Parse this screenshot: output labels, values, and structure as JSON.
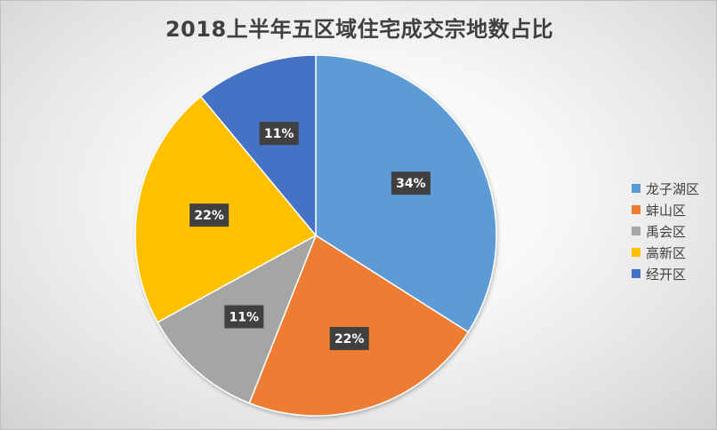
{
  "chart_data": {
    "type": "pie",
    "title": "2018上半年五区域住宅成交宗地数占比",
    "categories": [
      "龙子湖区",
      "蚌山区",
      "禹会区",
      "高新区",
      "经开区"
    ],
    "values": [
      34,
      22,
      11,
      22,
      11
    ],
    "labels": [
      "34%",
      "22%",
      "11%",
      "22%",
      "11%"
    ],
    "colors": [
      "#5B9BD5",
      "#ED7D31",
      "#A5A5A5",
      "#FFC000",
      "#4472C4"
    ],
    "legend_position": "right",
    "start_angle": "12 o'clock, clockwise"
  }
}
